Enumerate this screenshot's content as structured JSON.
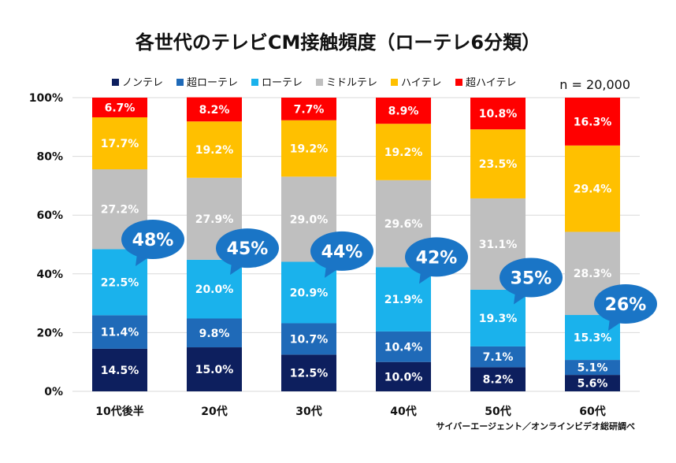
{
  "chart_data": {
    "type": "bar",
    "stacked": true,
    "title": "各世代のテレビCM接触頻度（ローテレ6分類）",
    "note": "n = 20,000",
    "source": "サイバーエージェント／オンラインビデオ総研調べ",
    "xlabel": "",
    "ylabel": "",
    "ylim": [
      0,
      100
    ],
    "y_ticks": [
      "0%",
      "20%",
      "40%",
      "60%",
      "80%",
      "100%"
    ],
    "categories": [
      "10代後半",
      "20代",
      "30代",
      "40代",
      "50代",
      "60代"
    ],
    "series": [
      {
        "name": "ノンテレ",
        "color": "#0d1f5e",
        "label_color": "#ffffff",
        "values": [
          14.5,
          15.0,
          12.5,
          10.0,
          8.2,
          5.6
        ],
        "labels": [
          "14.5%",
          "15.0%",
          "12.5%",
          "10.0%",
          "8.2%",
          "5.6%"
        ]
      },
      {
        "name": "超ローテレ",
        "color": "#1f6ab8",
        "label_color": "#ffffff",
        "values": [
          11.4,
          9.8,
          10.7,
          10.4,
          7.1,
          5.1
        ],
        "labels": [
          "11.4%",
          "9.8%",
          "10.7%",
          "10.4%",
          "7.1%",
          "5.1%"
        ]
      },
      {
        "name": "ローテレ",
        "color": "#1ab2ec",
        "label_color": "#ffffff",
        "values": [
          22.5,
          20.0,
          20.9,
          21.9,
          19.3,
          15.3
        ],
        "labels": [
          "22.5%",
          "20.0%",
          "20.9%",
          "21.9%",
          "19.3%",
          "15.3%"
        ]
      },
      {
        "name": "ミドルテレ",
        "color": "#bfbfbf",
        "label_color": "#ffffff",
        "values": [
          27.2,
          27.9,
          29.0,
          29.6,
          31.1,
          28.3
        ],
        "labels": [
          "27.2%",
          "27.9%",
          "29.0%",
          "29.6%",
          "31.1%",
          "28.3%"
        ]
      },
      {
        "name": "ハイテレ",
        "color": "#ffc000",
        "label_color": "#ffffff",
        "values": [
          17.7,
          19.2,
          19.2,
          19.2,
          23.5,
          29.4
        ],
        "labels": [
          "17.7%",
          "19.2%",
          "19.2%",
          "19.2%",
          "23.5%",
          "29.4%"
        ]
      },
      {
        "name": "超ハイテレ",
        "color": "#ff0000",
        "label_color": "#ffffff",
        "values": [
          6.7,
          8.2,
          7.7,
          8.9,
          10.8,
          16.3
        ],
        "labels": [
          "6.7%",
          "8.2%",
          "7.7%",
          "8.9%",
          "10.8%",
          "16.3%"
        ]
      }
    ],
    "callouts": {
      "color": "#1a75c6",
      "values": [
        48,
        45,
        44,
        42,
        35,
        26
      ],
      "labels": [
        "48%",
        "45%",
        "44%",
        "42%",
        "35%",
        "26%"
      ]
    }
  }
}
